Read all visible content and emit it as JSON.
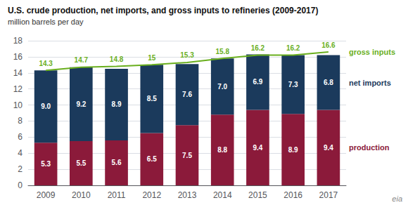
{
  "chart_data": {
    "type": "bar",
    "title": "U.S. crude production, net imports, and gross inputs to refineries (2009-2017)",
    "subtitle": "million barrels per day",
    "categories": [
      "2009",
      "2010",
      "2011",
      "2012",
      "2013",
      "2014",
      "2015",
      "2016",
      "2017"
    ],
    "stacked": true,
    "data_labels": true,
    "grid": true,
    "ylim": [
      0,
      18
    ],
    "yticks": [
      0,
      2,
      4,
      6,
      8,
      10,
      12,
      14,
      16,
      18
    ],
    "annotations": [
      "eia"
    ],
    "series": [
      {
        "name": "production",
        "type": "bar",
        "color": "#8B1A3A",
        "values": [
          5.3,
          5.5,
          5.6,
          6.5,
          7.5,
          8.8,
          9.4,
          8.9,
          9.4
        ]
      },
      {
        "name": "net imports",
        "type": "bar",
        "color": "#1B3A5C",
        "values": [
          9.0,
          9.2,
          8.9,
          8.5,
          7.6,
          7.0,
          6.9,
          7.3,
          6.8
        ],
        "value_labels": [
          "9.0",
          "9.2",
          "8.9",
          "8.5",
          "7.6",
          "7.0",
          "6.9",
          "7.3",
          "6.8"
        ]
      },
      {
        "name": "gross inputs",
        "type": "line",
        "color": "#6AAF1E",
        "values": [
          14.3,
          14.7,
          14.8,
          15.0,
          15.3,
          15.8,
          16.2,
          16.2,
          16.6
        ]
      }
    ]
  }
}
